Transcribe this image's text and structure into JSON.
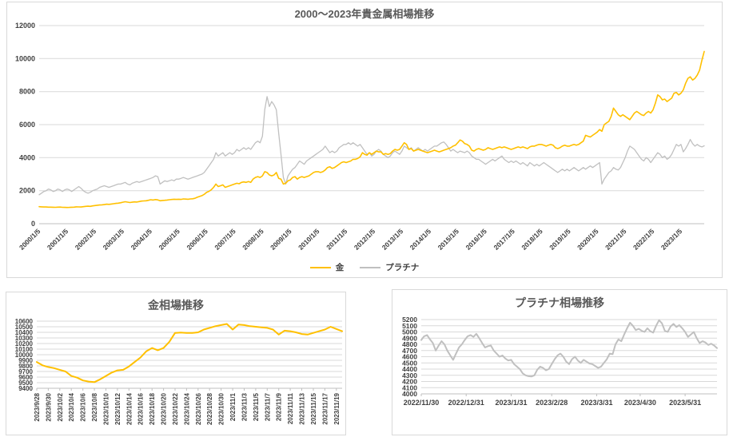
{
  "page": {
    "background": "#ffffff"
  },
  "colors": {
    "gold": "#FFC000",
    "platinum": "#C0C0C0",
    "grid": "#D9D9D9",
    "axis": "#BFBFBF",
    "tick_text": "#404040",
    "title_text": "#595959"
  },
  "chart_data": [
    {
      "type": "line",
      "title": "2000〜2023年貴金属相場推移",
      "x_unit": "monthly",
      "x_start": "2000/1",
      "x_end": "2023/11",
      "points_per_tick": 12,
      "x_tick_labels": [
        "2000/1/5",
        "2001/1/5",
        "2002/1/5",
        "2003/1/5",
        "2004/1/5",
        "2005/1/5",
        "2006/1/5",
        "2007/1/5",
        "2008/1/5",
        "2009/1/5",
        "2010/1/5",
        "2011/1/5",
        "2012/1/5",
        "2013/1/5",
        "2014/1/5",
        "2015/1/5",
        "2016/1/5",
        "2017/1/5",
        "2018/1/5",
        "2019/1/5",
        "2020/1/5",
        "2021/1/5",
        "2022/1/5",
        "2023/1/5"
      ],
      "ylim": [
        0,
        12000
      ],
      "ytick_step": 2000,
      "grid": true,
      "legend_position": "bottom",
      "series": [
        {
          "name": "金",
          "color": "#FFC000",
          "width": 1.6,
          "values": [
            1030,
            1020,
            1010,
            1010,
            1000,
            1000,
            995,
            990,
            1000,
            1005,
            990,
            985,
            980,
            985,
            995,
            1000,
            1020,
            1015,
            1010,
            1030,
            1050,
            1060,
            1050,
            1080,
            1100,
            1120,
            1130,
            1140,
            1155,
            1180,
            1170,
            1190,
            1210,
            1230,
            1245,
            1270,
            1300,
            1330,
            1305,
            1280,
            1300,
            1320,
            1310,
            1340,
            1370,
            1380,
            1390,
            1420,
            1450,
            1430,
            1460,
            1440,
            1390,
            1410,
            1420,
            1430,
            1450,
            1465,
            1480,
            1470,
            1480,
            1470,
            1500,
            1490,
            1480,
            1500,
            1510,
            1540,
            1600,
            1650,
            1700,
            1780,
            1900,
            1960,
            2050,
            2200,
            2400,
            2250,
            2300,
            2350,
            2200,
            2250,
            2300,
            2350,
            2400,
            2450,
            2420,
            2500,
            2530,
            2500,
            2550,
            2500,
            2700,
            2800,
            2850,
            2800,
            2900,
            3150,
            3100,
            2950,
            2900,
            2950,
            3100,
            2750,
            2700,
            2400,
            2450,
            2600,
            2650,
            2800,
            2850,
            2700,
            2800,
            2850,
            2800,
            2850,
            2900,
            3000,
            3100,
            3150,
            3150,
            3100,
            3150,
            3250,
            3400,
            3450,
            3350,
            3400,
            3500,
            3600,
            3700,
            3750,
            3700,
            3750,
            3800,
            3900,
            3900,
            3950,
            4050,
            4300,
            4200,
            4150,
            4300,
            4200,
            4300,
            4400,
            4350,
            4350,
            4200,
            4250,
            4200,
            4250,
            4400,
            4500,
            4450,
            4500,
            4700,
            4900,
            4800,
            4500,
            4550,
            4400,
            4450,
            4500,
            4450,
            4400,
            4350,
            4300,
            4350,
            4400,
            4450,
            4400,
            4350,
            4400,
            4450,
            4500,
            4550,
            4600,
            4700,
            4750,
            4900,
            5070,
            5000,
            4850,
            4800,
            4700,
            4450,
            4400,
            4500,
            4550,
            4500,
            4450,
            4500,
            4600,
            4550,
            4500,
            4550,
            4600,
            4650,
            4600,
            4650,
            4600,
            4550,
            4500,
            4550,
            4600,
            4650,
            4600,
            4650,
            4600,
            4550,
            4650,
            4700,
            4700,
            4750,
            4800,
            4800,
            4750,
            4700,
            4750,
            4800,
            4750,
            4600,
            4550,
            4600,
            4700,
            4750,
            4700,
            4700,
            4750,
            4800,
            4750,
            4800,
            4900,
            5000,
            5350,
            5300,
            5250,
            5350,
            5450,
            5550,
            5700,
            5600,
            6000,
            6100,
            6200,
            6500,
            7000,
            6800,
            6600,
            6500,
            6600,
            6500,
            6400,
            6300,
            6500,
            6700,
            6800,
            6700,
            6600,
            6550,
            6700,
            6800,
            6700,
            6900,
            7300,
            7800,
            7700,
            7500,
            7550,
            7400,
            7500,
            7600,
            7900,
            7950,
            7800,
            7900,
            8100,
            8500,
            8800,
            8900,
            8700,
            8800,
            9000,
            9300,
            9900,
            10430
          ]
        },
        {
          "name": "プラチナ",
          "color": "#C0C0C0",
          "width": 1.3,
          "values": [
            1750,
            1850,
            1950,
            2000,
            2100,
            2050,
            1950,
            2000,
            2100,
            2050,
            1950,
            2050,
            2100,
            2050,
            1950,
            2050,
            2150,
            2250,
            2150,
            2000,
            1900,
            1850,
            1900,
            2000,
            2050,
            2100,
            2200,
            2250,
            2300,
            2250,
            2200,
            2250,
            2300,
            2350,
            2400,
            2400,
            2450,
            2500,
            2400,
            2350,
            2450,
            2500,
            2550,
            2500,
            2550,
            2600,
            2650,
            2700,
            2750,
            2800,
            2900,
            2850,
            2400,
            2500,
            2600,
            2550,
            2600,
            2650,
            2600,
            2700,
            2700,
            2750,
            2800,
            2750,
            2700,
            2750,
            2800,
            2850,
            2900,
            2950,
            3000,
            3100,
            3300,
            3500,
            3700,
            3900,
            4300,
            4100,
            4200,
            4300,
            4100,
            4200,
            4300,
            4200,
            4300,
            4500,
            4400,
            4500,
            4600,
            4500,
            4600,
            4500,
            4700,
            4900,
            5000,
            4900,
            5300,
            6900,
            7700,
            7100,
            7400,
            7200,
            6900,
            5500,
            4200,
            2800,
            2400,
            2900,
            3100,
            3300,
            3400,
            3600,
            3800,
            3700,
            3600,
            3800,
            3900,
            4000,
            4100,
            4200,
            4300,
            4400,
            4500,
            4700,
            4500,
            4300,
            4400,
            4300,
            4400,
            4600,
            4700,
            4800,
            4800,
            4900,
            4800,
            4900,
            4800,
            4700,
            4800,
            4600,
            4400,
            4200,
            4300,
            4100,
            4200,
            4400,
            4500,
            4400,
            4200,
            4100,
            4000,
            4100,
            4300,
            4400,
            4300,
            4200,
            4400,
            4700,
            4600,
            4500,
            4600,
            4400,
            4500,
            4600,
            4500,
            4400,
            4500,
            4400,
            4500,
            4600,
            4700,
            4700,
            4800,
            4900,
            4950,
            4800,
            4600,
            4400,
            4500,
            4400,
            4300,
            4400,
            4350,
            4300,
            4400,
            4300,
            4100,
            4000,
            3900,
            3900,
            3800,
            3700,
            3600,
            3700,
            3800,
            3900,
            3800,
            3900,
            4000,
            4100,
            3900,
            3800,
            3700,
            3800,
            3700,
            3800,
            3700,
            3600,
            3700,
            3600,
            3500,
            3700,
            3600,
            3500,
            3600,
            3500,
            3600,
            3700,
            3600,
            3500,
            3400,
            3300,
            3200,
            3100,
            3200,
            3300,
            3200,
            3300,
            3200,
            3300,
            3400,
            3300,
            3200,
            3300,
            3400,
            3300,
            3400,
            3500,
            3400,
            3500,
            3600,
            3700,
            2400,
            2700,
            2900,
            3100,
            3200,
            3400,
            3300,
            3250,
            3400,
            3700,
            4000,
            4400,
            4700,
            4600,
            4500,
            4300,
            4100,
            3900,
            3800,
            4000,
            3900,
            3700,
            3900,
            4100,
            4300,
            4200,
            4000,
            4100,
            3900,
            4000,
            4200,
            4500,
            4800,
            4700,
            4800,
            4350,
            4550,
            4800,
            5100,
            4850,
            4700,
            4800,
            4700,
            4650,
            4720
          ]
        }
      ]
    },
    {
      "type": "line",
      "title": "金相場推移",
      "x_unit": "daily",
      "x_start": "2023/9/28",
      "x_end": "2023/11/20",
      "points_per_tick": 2,
      "x_tick_labels": [
        "2023/9/28",
        "2023/9/30",
        "2023/10/2",
        "2023/10/4",
        "2023/10/6",
        "2023/10/8",
        "2023/10/10",
        "2023/10/12",
        "2023/10/14",
        "2023/10/16",
        "2023/10/18",
        "2023/10/20",
        "2023/10/22",
        "2023/10/24",
        "2023/10/26",
        "2023/10/28",
        "2023/10/30",
        "2023/11/1",
        "2023/11/3",
        "2023/11/5",
        "2023/11/7",
        "2023/11/9",
        "2023/11/11",
        "2023/11/13",
        "2023/11/15",
        "2023/11/17",
        "2023/11/19"
      ],
      "ylim": [
        9400,
        10600
      ],
      "ytick_step": 100,
      "grid": true,
      "series": [
        {
          "name": "金",
          "color": "#FFC000",
          "width": 2,
          "values": [
            9870,
            9810,
            9780,
            9760,
            9730,
            9700,
            9620,
            9590,
            9540,
            9520,
            9510,
            9560,
            9620,
            9680,
            9720,
            9730,
            9790,
            9870,
            9950,
            10060,
            10120,
            10080,
            10120,
            10230,
            10390,
            10395,
            10390,
            10390,
            10400,
            10450,
            10480,
            10510,
            10530,
            10550,
            10450,
            10540,
            10530,
            10510,
            10500,
            10490,
            10480,
            10450,
            10360,
            10430,
            10420,
            10400,
            10370,
            10360,
            10390,
            10420,
            10450,
            10500,
            10460,
            10420
          ]
        }
      ]
    },
    {
      "type": "line",
      "title": "プラチナ相場推移",
      "x_unit": "2-day",
      "x_start": "2022/11/30",
      "x_end": "2023/6/20",
      "x_tick_labels": [
        "2022/11/30",
        "2022/12/31",
        "2023/1/31",
        "2023/2/28",
        "2023/3/31",
        "2023/4/30",
        "2023/5/31"
      ],
      "tick_day_offsets": [
        0,
        31,
        62,
        90,
        121,
        151,
        182
      ],
      "total_days_span": 204,
      "ylim": [
        4000,
        5200
      ],
      "ytick_step": 100,
      "grid": true,
      "series": [
        {
          "name": "プラチナ",
          "color": "#C0C0C0",
          "width": 2,
          "values": [
            4870,
            4930,
            4950,
            4880,
            4820,
            4700,
            4780,
            4850,
            4800,
            4700,
            4620,
            4550,
            4650,
            4750,
            4800,
            4870,
            4930,
            4950,
            4920,
            4970,
            4900,
            4820,
            4750,
            4770,
            4780,
            4700,
            4650,
            4600,
            4620,
            4570,
            4540,
            4550,
            4480,
            4440,
            4400,
            4330,
            4300,
            4285,
            4280,
            4300,
            4390,
            4440,
            4420,
            4380,
            4400,
            4480,
            4560,
            4620,
            4650,
            4600,
            4520,
            4480,
            4560,
            4600,
            4540,
            4500,
            4550,
            4520,
            4490,
            4480,
            4450,
            4420,
            4440,
            4500,
            4560,
            4650,
            4640,
            4800,
            4880,
            4850,
            4960,
            5060,
            5150,
            5100,
            5030,
            5050,
            5020,
            5000,
            5060,
            5010,
            4990,
            5100,
            5190,
            5140,
            5020,
            5000,
            5090,
            5130,
            5080,
            5110,
            5060,
            5000,
            4920,
            4960,
            5000,
            4900,
            4820,
            4850,
            4830,
            4790,
            4810,
            4780,
            4740
          ]
        }
      ]
    }
  ]
}
